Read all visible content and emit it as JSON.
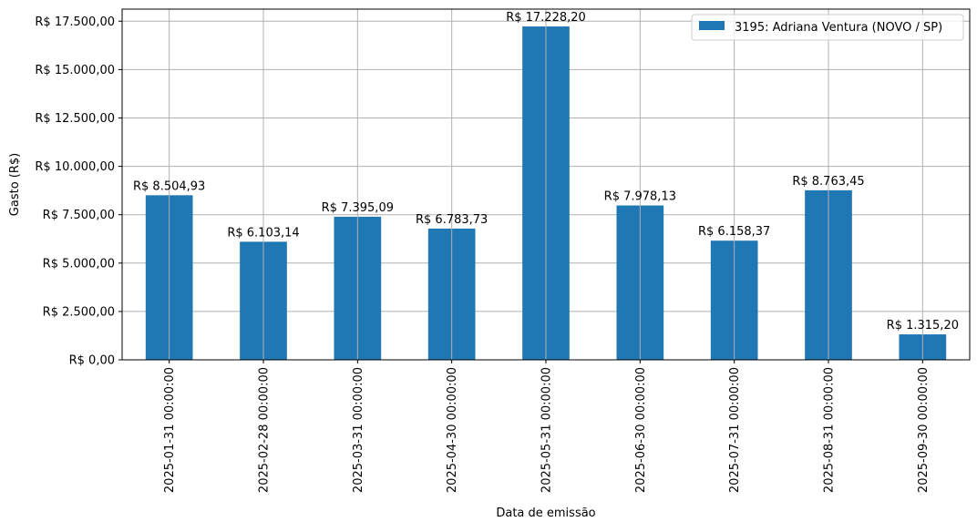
{
  "chart_data": {
    "type": "bar",
    "title": "",
    "xlabel": "Data de emissão",
    "ylabel": "Gasto (R$)",
    "categories": [
      "2025-01-31 00:00:00",
      "2025-02-28 00:00:00",
      "2025-03-31 00:00:00",
      "2025-04-30 00:00:00",
      "2025-05-31 00:00:00",
      "2025-06-30 00:00:00",
      "2025-07-31 00:00:00",
      "2025-08-31 00:00:00",
      "2025-09-30 00:00:00"
    ],
    "series": [
      {
        "name": "3195: Adriana Ventura (NOVO / SP)",
        "color": "#1f77b4",
        "values": [
          8504.93,
          6103.14,
          7395.09,
          6783.73,
          17228.2,
          7978.13,
          6158.37,
          8763.45,
          1315.2
        ],
        "labels": [
          "R$ 8.504,93",
          "R$ 6.103,14",
          "R$ 7.395,09",
          "R$ 6.783,73",
          "R$ 17.228,20",
          "R$ 7.978,13",
          "R$ 6.158,37",
          "R$ 8.763,45",
          "R$ 1.315,20"
        ]
      }
    ],
    "ylim": [
      0,
      18125
    ],
    "yticks": [
      0,
      2500,
      5000,
      7500,
      10000,
      12500,
      15000,
      17500
    ],
    "ytick_labels": [
      "R$ 0,00",
      "R$ 2.500,00",
      "R$ 5.000,00",
      "R$ 7.500,00",
      "R$ 10.000,00",
      "R$ 12.500,00",
      "R$ 15.000,00",
      "R$ 17.500,00"
    ],
    "grid": true,
    "legend_position": "top-right"
  }
}
